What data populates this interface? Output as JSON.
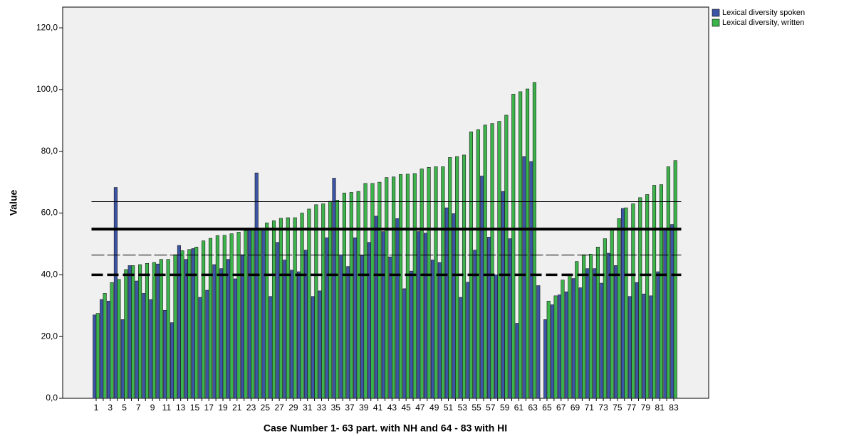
{
  "chart_data": {
    "type": "bar",
    "y_axis_label": "Value",
    "x_axis_label": "Case Number 1- 63 part. with NH and 64 - 83 with HI",
    "categories": [
      "1",
      null,
      "3",
      null,
      "5",
      null,
      "7",
      null,
      "9",
      null,
      "11",
      null,
      "13",
      null,
      "15",
      null,
      "17",
      null,
      "19",
      null,
      "21",
      null,
      "23",
      null,
      "25",
      null,
      "27",
      null,
      "29",
      null,
      "31",
      null,
      "33",
      null,
      "35",
      null,
      "37",
      null,
      "39",
      null,
      "41",
      null,
      "43",
      null,
      "45",
      null,
      "47",
      null,
      "49",
      null,
      "51",
      null,
      "53",
      null,
      "55",
      null,
      "57",
      null,
      "59",
      null,
      "61",
      null,
      "63",
      null,
      "65",
      null,
      "67",
      null,
      "69",
      null,
      "71",
      null,
      "73",
      null,
      "75",
      null,
      "77",
      null,
      "79",
      null,
      "81",
      null,
      "83"
    ],
    "series": [
      {
        "name": "Lexical diversity spoken",
        "color": "#3c55a5",
        "values": [
          27,
          32,
          31.5,
          68.3,
          25.5,
          43,
          38,
          34,
          32,
          43.5,
          28.5,
          24.5,
          49.5,
          45,
          48.5,
          32.7,
          35,
          43.3,
          42,
          45,
          38.7,
          46.5,
          54.5,
          73,
          55,
          33,
          50.5,
          44.8,
          41.5,
          41,
          48,
          33,
          34.8,
          52,
          71.3,
          46.5,
          42.7,
          52,
          46.3,
          50.5,
          59,
          54,
          45.8,
          58.2,
          35.5,
          41.2,
          54,
          53.5,
          44.8,
          44,
          61.7,
          59.8,
          32.7,
          37.6,
          48,
          72,
          52.2,
          40,
          67,
          51.7,
          24.3,
          78.3,
          76.7,
          36.5,
          25.5,
          30.3,
          33.5,
          34.5,
          38.8,
          35.8,
          42,
          42,
          37.3,
          47,
          43,
          61.5,
          33,
          37.5,
          33.8,
          33.2,
          41,
          55,
          56.3
        ]
      },
      {
        "name": "Lexical diversity, written",
        "color": "#3cb44b",
        "values": [
          27.5,
          34,
          37.5,
          38.5,
          41.7,
          43,
          43.3,
          43.7,
          44,
          45,
          45,
          46.5,
          47.8,
          48.2,
          49,
          51,
          51.8,
          52.7,
          52.8,
          53.3,
          53.8,
          54.3,
          54.8,
          55,
          56.8,
          57.5,
          58.3,
          58.5,
          58.5,
          60,
          61.3,
          62.7,
          63,
          63.8,
          64.2,
          66.5,
          66.7,
          67,
          69.6,
          69.6,
          70,
          71.5,
          71.7,
          72.5,
          72.6,
          72.8,
          74.3,
          74.8,
          75,
          75,
          78,
          78.3,
          78.8,
          86.3,
          87,
          88.5,
          89,
          89.7,
          91.7,
          98.5,
          99.3,
          100.2,
          102.3,
          null,
          31.5,
          33.2,
          38.3,
          40,
          44.3,
          46.5,
          46.7,
          49,
          51.7,
          54.5,
          58.2,
          61.7,
          63,
          65,
          66,
          69,
          69.2,
          75,
          77
        ]
      }
    ],
    "reference_lines": [
      {
        "value": 63.7,
        "style": "thin"
      },
      {
        "value": 54.8,
        "style": "thick"
      },
      {
        "value": 46.4,
        "style": "thin-dashed"
      },
      {
        "value": 40,
        "style": "thick-dashed"
      }
    ],
    "ylim": [
      0,
      126.7
    ],
    "yticks": [
      {
        "value": 0,
        "label": "0,0"
      },
      {
        "value": 20,
        "label": "20,0"
      },
      {
        "value": 40,
        "label": "40,0"
      },
      {
        "value": 60,
        "label": "60,0"
      },
      {
        "value": 80,
        "label": "80,0"
      },
      {
        "value": 100,
        "label": "100,0"
      },
      {
        "value": 120,
        "label": "120,0"
      }
    ],
    "legend": "top-right"
  }
}
